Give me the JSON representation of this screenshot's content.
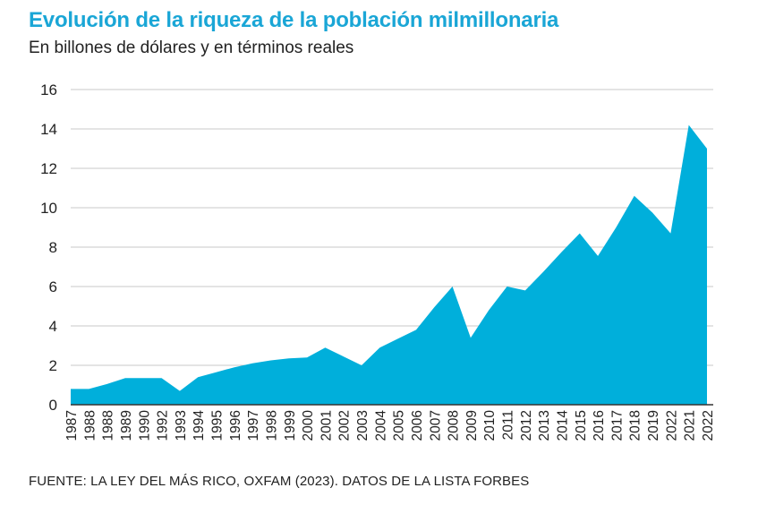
{
  "chart_data": {
    "type": "area",
    "title": "Evolución de la riqueza de la población milmillonaria",
    "subtitle": "En billones de dólares y en términos reales",
    "xlabel": "",
    "ylabel": "",
    "ylim": [
      0,
      16
    ],
    "yticks": [
      0,
      2,
      4,
      6,
      8,
      10,
      12,
      14,
      16
    ],
    "grid": true,
    "legend": "none",
    "fill_color": "#00afdb",
    "categories": [
      "1987",
      "1988",
      "1988",
      "1989",
      "1990",
      "1992",
      "1993",
      "1994",
      "1995",
      "1996",
      "1997",
      "1998",
      "1999",
      "2000",
      "2001",
      "2002",
      "2003",
      "2004",
      "2005",
      "2006",
      "2007",
      "2008",
      "2009",
      "2010",
      "2011",
      "2012",
      "2013",
      "2014",
      "2015",
      "2016",
      "2017",
      "2018",
      "2019",
      "2022",
      "2021",
      "2022"
    ],
    "values": [
      0.8,
      0.8,
      1.05,
      1.35,
      1.35,
      1.35,
      0.7,
      1.4,
      1.65,
      1.9,
      2.1,
      2.25,
      2.35,
      2.4,
      2.9,
      2.45,
      2.0,
      2.9,
      3.35,
      3.8,
      4.95,
      6.0,
      3.4,
      4.8,
      6.0,
      5.8,
      6.75,
      7.75,
      8.7,
      7.55,
      9.0,
      10.6,
      9.75,
      8.7,
      14.2,
      13.0
    ]
  },
  "source": "FUENTE: LA LEY DEL MÁS RICO, OXFAM (2023). DATOS DE LA LISTA FORBES"
}
